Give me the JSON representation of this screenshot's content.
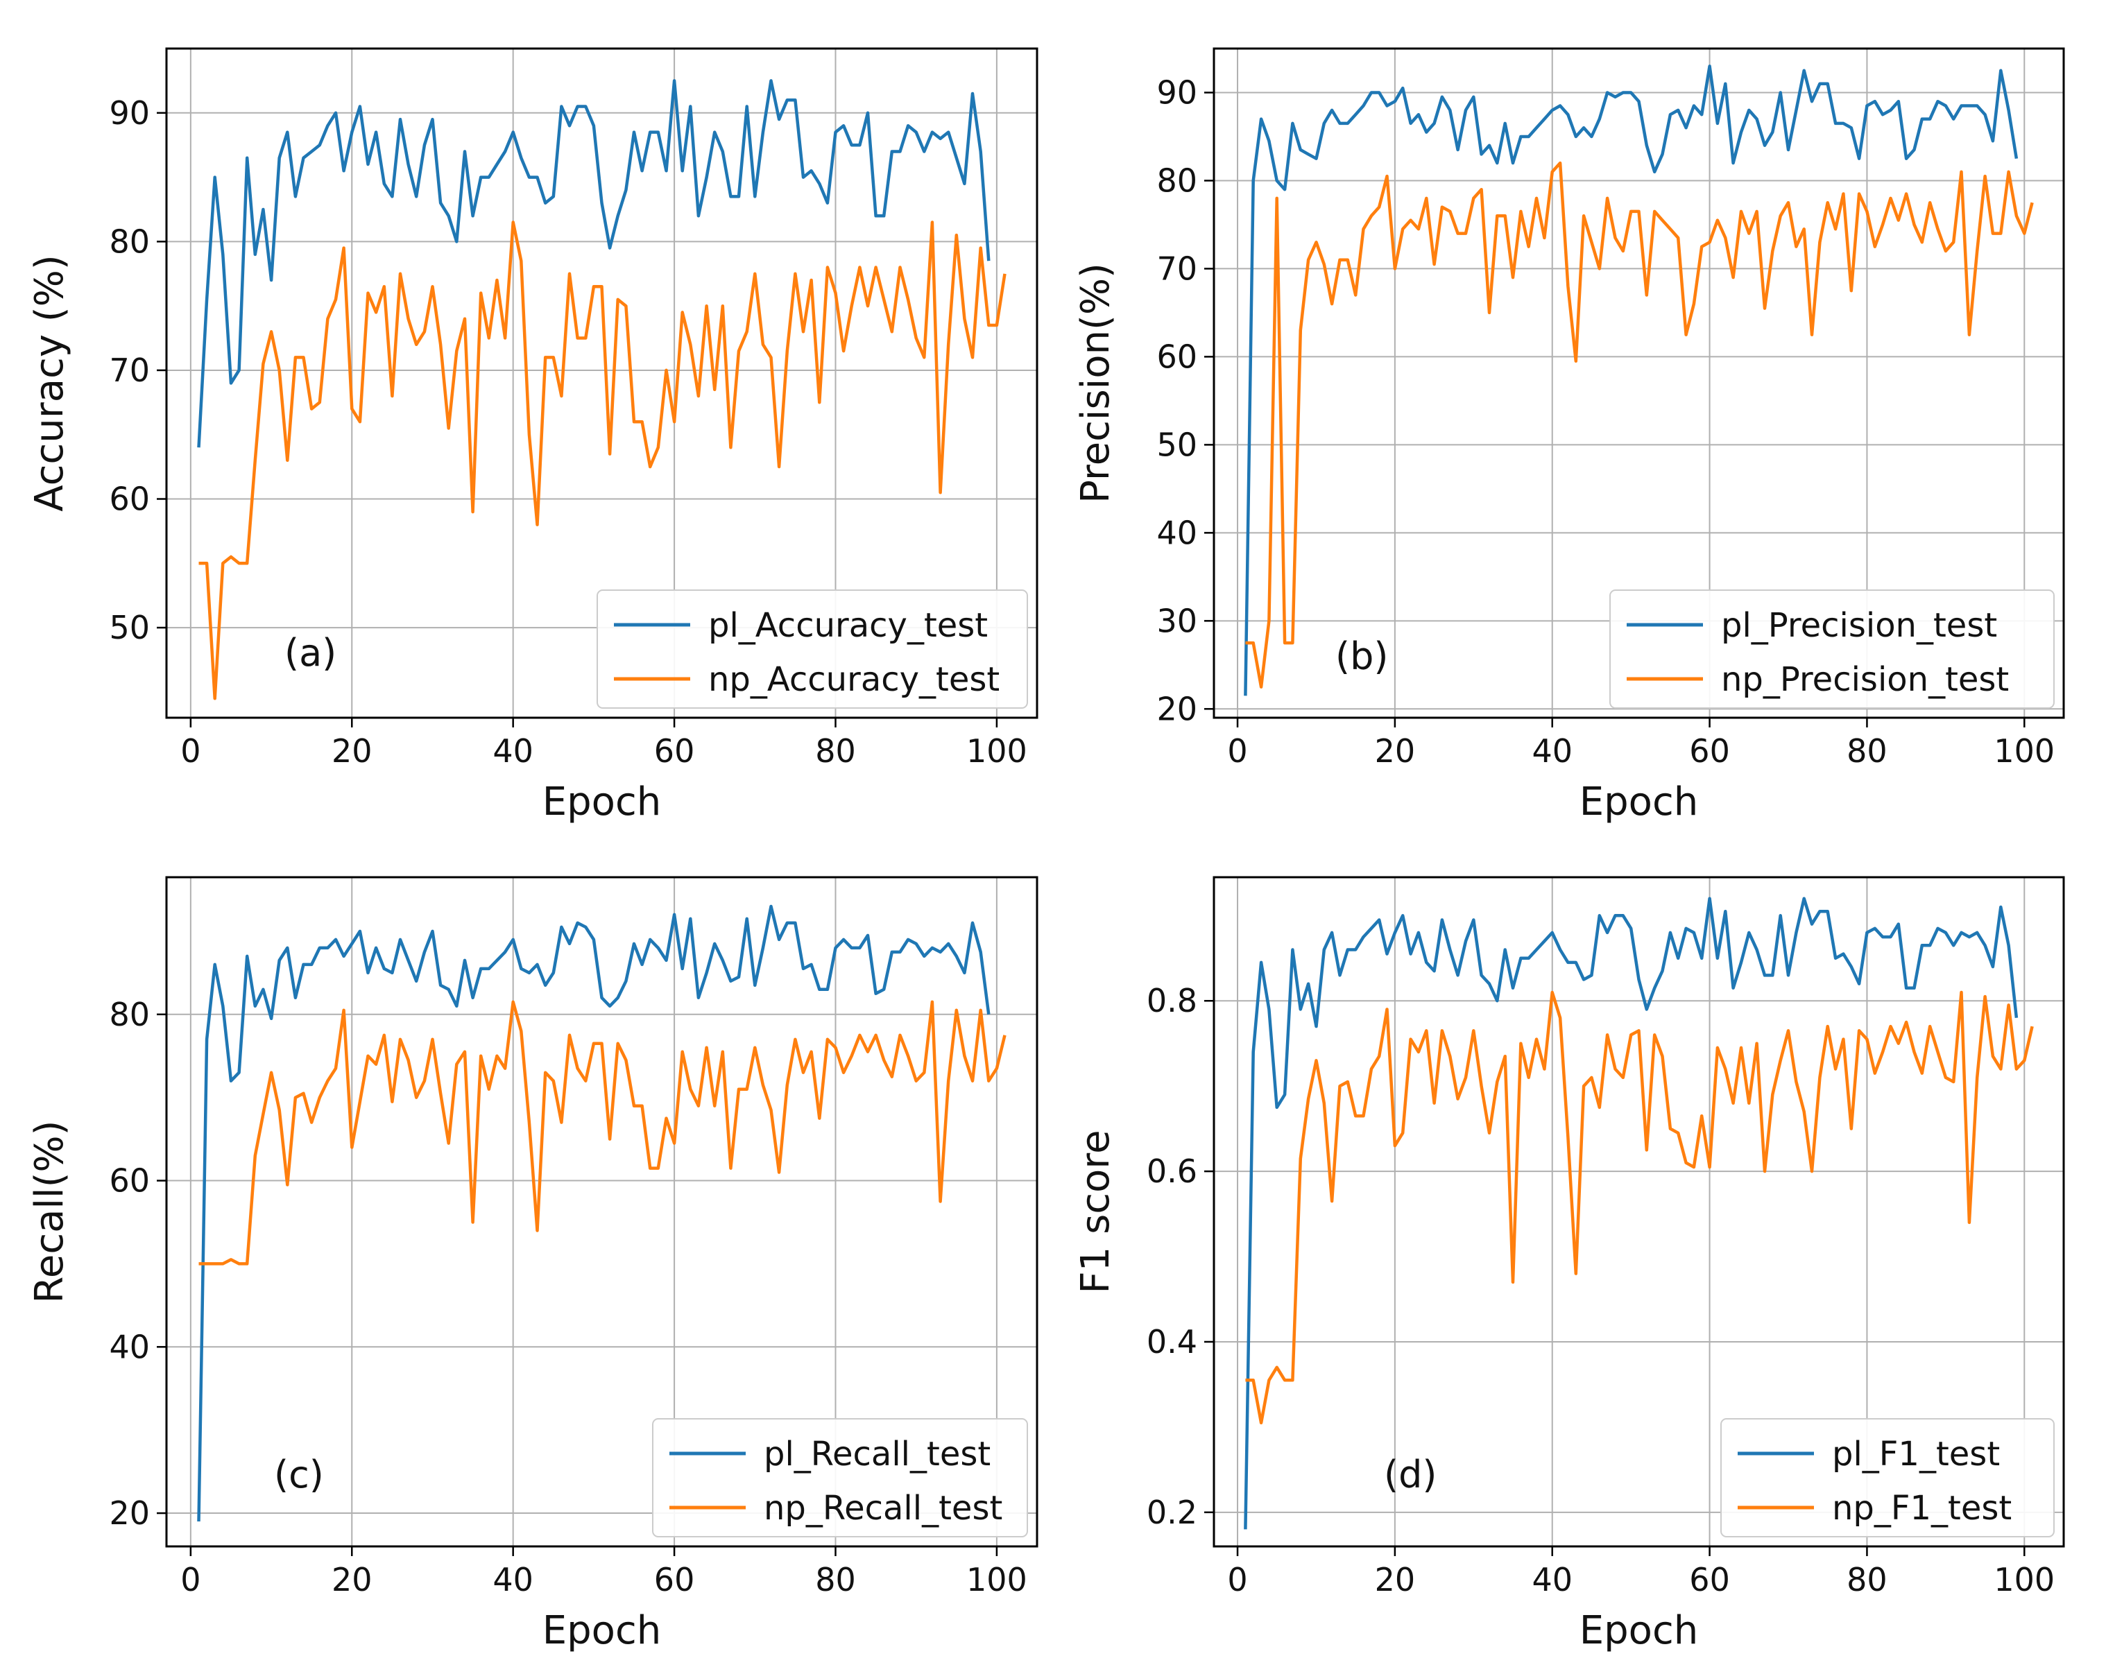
{
  "chart_data": [
    {
      "type": "line",
      "panel_label": "(a)",
      "xlabel": "Epoch",
      "ylabel": "Accuracy (%)",
      "xlim": [
        -3,
        105
      ],
      "ylim": [
        43,
        95
      ],
      "xticks": [
        0,
        20,
        40,
        60,
        80,
        100
      ],
      "yticks": [
        50,
        60,
        70,
        80,
        90
      ],
      "ytick_labels": [
        "50",
        "60",
        "70",
        "80",
        "90"
      ],
      "grid": true,
      "legend_position": "lower-right",
      "series": [
        {
          "name": "pl_Accuracy_test",
          "color": "#1f77b4",
          "values": [
            64,
            75.5,
            85,
            79,
            69,
            70,
            86.5,
            79,
            82.5,
            77,
            86.5,
            88.5,
            83.5,
            86.5,
            87,
            87.5,
            89,
            90,
            85.5,
            88.5,
            90.5,
            86,
            88.5,
            84.5,
            83.5,
            89.5,
            86,
            83.5,
            87.5,
            89.5,
            83,
            82,
            80,
            87,
            82,
            85,
            85,
            86,
            87,
            88.5,
            86.5,
            85,
            85,
            83,
            83.5,
            90.5,
            89,
            90.5,
            90.5,
            89,
            83,
            79.5,
            82,
            84,
            88.5,
            85.5,
            88.5,
            88.5,
            85.5,
            92.5,
            85.5,
            90.5,
            82,
            85,
            88.5,
            87,
            83.5,
            83.5,
            90.5,
            83.5,
            88.5,
            92.5,
            89.5,
            91,
            91,
            85,
            85.5,
            84.5,
            83,
            88.5,
            89,
            87.5,
            87.5,
            90,
            82,
            82,
            87,
            87,
            89,
            88.5,
            87,
            88.5,
            88,
            88.5,
            86.5,
            84.5,
            91.5,
            87,
            78.5
          ]
        },
        {
          "name": "np_Accuracy_test",
          "color": "#ff7f0e",
          "values": [
            55,
            55,
            44.5,
            55,
            55.5,
            55,
            55,
            63,
            70.5,
            73,
            70,
            63,
            71,
            71,
            67,
            67.5,
            74,
            75.5,
            79.5,
            67,
            66,
            76,
            74.5,
            76.5,
            68,
            77.5,
            74,
            72,
            73,
            76.5,
            72,
            65.5,
            71.5,
            74,
            59,
            76,
            72.5,
            77,
            72.5,
            81.5,
            78.5,
            65,
            58,
            71,
            71,
            68,
            77.5,
            72.5,
            72.5,
            76.5,
            76.5,
            63.5,
            75.5,
            75,
            66,
            66,
            62.5,
            64,
            70,
            66,
            74.5,
            72,
            68,
            75,
            68.5,
            75,
            64,
            71.5,
            73,
            77.5,
            72,
            71,
            62.5,
            71.5,
            77.5,
            73,
            77,
            67.5,
            78,
            76,
            71.5,
            75,
            78,
            75,
            78,
            75.5,
            73,
            78,
            75.5,
            72.5,
            71,
            81.5,
            60.5,
            72,
            80.5,
            74,
            71,
            79.5,
            73.5,
            73.5,
            77.5
          ]
        }
      ]
    },
    {
      "type": "line",
      "panel_label": "(b)",
      "xlabel": "Epoch",
      "ylabel": "Precision(%)",
      "xlim": [
        -3,
        105
      ],
      "ylim": [
        19,
        95
      ],
      "xticks": [
        0,
        20,
        40,
        60,
        80,
        100
      ],
      "yticks": [
        20,
        30,
        40,
        50,
        60,
        70,
        80,
        90
      ],
      "ytick_labels": [
        "20",
        "30",
        "40",
        "50",
        "60",
        "70",
        "80",
        "90"
      ],
      "grid": true,
      "legend_position": "lower-right",
      "series": [
        {
          "name": "pl_Precision_test",
          "color": "#1f77b4",
          "values": [
            21.5,
            80,
            87,
            84.5,
            80,
            79,
            86.5,
            83.5,
            83,
            82.5,
            86.5,
            88,
            86.5,
            86.5,
            87.5,
            88.5,
            90,
            90,
            88.5,
            89,
            90.5,
            86.5,
            87.5,
            85.5,
            86.5,
            89.5,
            88,
            83.5,
            88,
            89.5,
            83,
            84,
            82,
            86.5,
            82,
            85,
            85,
            86,
            87,
            88,
            88.5,
            87.5,
            85,
            86,
            85,
            87,
            90,
            89.5,
            90,
            90,
            89,
            84,
            81,
            83,
            87.5,
            88,
            86,
            88.5,
            87.5,
            93,
            86.5,
            91,
            82,
            85.5,
            88,
            87,
            84,
            85.5,
            90,
            83.5,
            88,
            92.5,
            89,
            91,
            91,
            86.5,
            86.5,
            86,
            82.5,
            88.5,
            89,
            87.5,
            88,
            89,
            82.5,
            83.5,
            87,
            87,
            89,
            88.5,
            87,
            88.5,
            88.5,
            88.5,
            87.5,
            84.5,
            92.5,
            88,
            82.5
          ]
        },
        {
          "name": "np_Precision_test",
          "color": "#ff7f0e",
          "values": [
            27.5,
            27.5,
            22.5,
            30,
            78,
            27.5,
            27.5,
            63,
            71,
            73,
            70.5,
            66,
            71,
            71,
            67,
            74.5,
            76,
            77,
            80.5,
            70,
            74.5,
            75.5,
            74.5,
            78,
            70.5,
            77,
            76.5,
            74,
            74,
            78,
            79,
            65,
            76,
            76,
            69,
            76.5,
            72.5,
            78,
            73.5,
            81,
            82,
            68,
            59.5,
            76,
            73,
            70,
            78,
            73.5,
            72,
            76.5,
            76.5,
            67,
            76.5,
            75.5,
            74.5,
            73.5,
            62.5,
            66,
            72.5,
            73,
            75.5,
            73.5,
            69,
            76.5,
            74,
            76.5,
            65.5,
            72,
            76,
            77.5,
            72.5,
            74.5,
            62.5,
            73,
            77.5,
            74.5,
            78.5,
            67.5,
            78.5,
            76.5,
            72.5,
            75,
            78,
            75.5,
            78.5,
            75,
            73,
            77.5,
            74.5,
            72,
            73,
            81,
            62.5,
            72,
            80.5,
            74,
            74,
            81,
            76,
            74,
            77.5
          ]
        }
      ]
    },
    {
      "type": "line",
      "panel_label": "(c)",
      "xlabel": "Epoch",
      "ylabel": "Recall(%)",
      "xlim": [
        -3,
        105
      ],
      "ylim": [
        16,
        96.5
      ],
      "xticks": [
        0,
        20,
        40,
        60,
        80,
        100
      ],
      "yticks": [
        20,
        40,
        60,
        80
      ],
      "ytick_labels": [
        "20",
        "40",
        "60",
        "80"
      ],
      "grid": true,
      "legend_position": "lower-right",
      "series": [
        {
          "name": "pl_Recall_test",
          "color": "#1f77b4",
          "values": [
            19,
            77,
            86,
            81,
            72,
            73,
            87,
            81,
            83,
            79.5,
            86.5,
            88,
            82,
            86,
            86,
            88,
            88,
            89,
            87,
            88.5,
            90,
            85,
            88,
            85.5,
            85,
            89,
            86.5,
            84,
            87.5,
            90,
            83.5,
            83,
            81,
            86.5,
            82,
            85.5,
            85.5,
            86.5,
            87.5,
            89,
            85.5,
            85,
            86,
            83.5,
            85,
            90.5,
            88.5,
            91,
            90.5,
            89,
            82,
            81,
            82,
            84,
            88.5,
            86,
            89,
            88,
            86.5,
            92,
            85.5,
            91.5,
            82,
            85,
            88.5,
            86.5,
            84,
            84.5,
            91.5,
            83.5,
            88,
            93,
            89,
            91,
            91,
            85.5,
            86,
            83,
            83,
            88,
            89,
            88,
            88,
            89.5,
            82.5,
            83,
            87.5,
            87.5,
            89,
            88.5,
            87,
            88,
            87.5,
            88.5,
            87,
            85,
            91,
            87.5,
            80
          ]
        },
        {
          "name": "np_Recall_test",
          "color": "#ff7f0e",
          "values": [
            50,
            50,
            50,
            50,
            50.5,
            50,
            50,
            63,
            68,
            73,
            68.5,
            59.5,
            70,
            70.5,
            67,
            70,
            72,
            73.5,
            80.5,
            64,
            69.5,
            75,
            74,
            77.5,
            69.5,
            77,
            74.5,
            70,
            72,
            77,
            70.5,
            64.5,
            74,
            75.5,
            55,
            75,
            71,
            75,
            73.5,
            81.5,
            78,
            67,
            54,
            73,
            72,
            67,
            77.5,
            73.5,
            72,
            76.5,
            76.5,
            65,
            76.5,
            74.5,
            69,
            69,
            61.5,
            61.5,
            67.5,
            64.5,
            75.5,
            71,
            69,
            76,
            69,
            75.5,
            61.5,
            71,
            71,
            76,
            71.5,
            68.5,
            61,
            71.5,
            77,
            73,
            75.5,
            67.5,
            77,
            76,
            73,
            75,
            77.5,
            75.5,
            77.5,
            74.5,
            72.5,
            77.5,
            75,
            72,
            73,
            81.5,
            57.5,
            72,
            80.5,
            75,
            72,
            80.5,
            72,
            73.5,
            77.5
          ]
        }
      ]
    },
    {
      "type": "line",
      "panel_label": "(d)",
      "xlabel": "Epoch",
      "ylabel": "F1 score",
      "xlim": [
        -3,
        105
      ],
      "ylim": [
        0.16,
        0.945
      ],
      "xticks": [
        0,
        20,
        40,
        60,
        80,
        100
      ],
      "yticks": [
        0.2,
        0.4,
        0.6,
        0.8
      ],
      "ytick_labels": [
        "0.2",
        "0.4",
        "0.6",
        "0.8"
      ],
      "grid": true,
      "legend_position": "lower-right",
      "series": [
        {
          "name": "pl_F1_test",
          "color": "#1f77b4",
          "values": [
            0.18,
            0.74,
            0.845,
            0.79,
            0.675,
            0.69,
            0.86,
            0.79,
            0.82,
            0.77,
            0.86,
            0.88,
            0.83,
            0.86,
            0.86,
            0.875,
            0.885,
            0.895,
            0.855,
            0.88,
            0.9,
            0.855,
            0.88,
            0.845,
            0.835,
            0.895,
            0.86,
            0.83,
            0.87,
            0.895,
            0.83,
            0.82,
            0.8,
            0.86,
            0.815,
            0.85,
            0.85,
            0.86,
            0.87,
            0.88,
            0.86,
            0.845,
            0.845,
            0.825,
            0.83,
            0.9,
            0.88,
            0.9,
            0.9,
            0.885,
            0.825,
            0.79,
            0.815,
            0.835,
            0.88,
            0.85,
            0.885,
            0.88,
            0.85,
            0.92,
            0.85,
            0.905,
            0.815,
            0.845,
            0.88,
            0.86,
            0.83,
            0.83,
            0.9,
            0.83,
            0.88,
            0.92,
            0.89,
            0.905,
            0.905,
            0.85,
            0.855,
            0.84,
            0.82,
            0.88,
            0.885,
            0.875,
            0.875,
            0.89,
            0.815,
            0.815,
            0.865,
            0.865,
            0.885,
            0.88,
            0.865,
            0.88,
            0.875,
            0.88,
            0.865,
            0.84,
            0.91,
            0.865,
            0.78
          ]
        },
        {
          "name": "np_F1_test",
          "color": "#ff7f0e",
          "values": [
            0.355,
            0.355,
            0.305,
            0.355,
            0.37,
            0.355,
            0.355,
            0.615,
            0.685,
            0.73,
            0.68,
            0.565,
            0.7,
            0.705,
            0.665,
            0.665,
            0.72,
            0.735,
            0.79,
            0.63,
            0.645,
            0.755,
            0.74,
            0.765,
            0.68,
            0.765,
            0.735,
            0.685,
            0.71,
            0.765,
            0.7,
            0.645,
            0.705,
            0.735,
            0.47,
            0.75,
            0.71,
            0.755,
            0.72,
            0.81,
            0.78,
            0.64,
            0.48,
            0.7,
            0.71,
            0.675,
            0.76,
            0.72,
            0.71,
            0.76,
            0.765,
            0.625,
            0.76,
            0.735,
            0.65,
            0.645,
            0.61,
            0.605,
            0.665,
            0.605,
            0.745,
            0.72,
            0.68,
            0.745,
            0.68,
            0.75,
            0.6,
            0.69,
            0.73,
            0.765,
            0.705,
            0.67,
            0.6,
            0.71,
            0.77,
            0.72,
            0.755,
            0.65,
            0.765,
            0.755,
            0.715,
            0.74,
            0.77,
            0.75,
            0.775,
            0.74,
            0.715,
            0.77,
            0.74,
            0.71,
            0.705,
            0.81,
            0.54,
            0.71,
            0.805,
            0.735,
            0.72,
            0.795,
            0.72,
            0.73,
            0.77
          ]
        }
      ]
    }
  ]
}
